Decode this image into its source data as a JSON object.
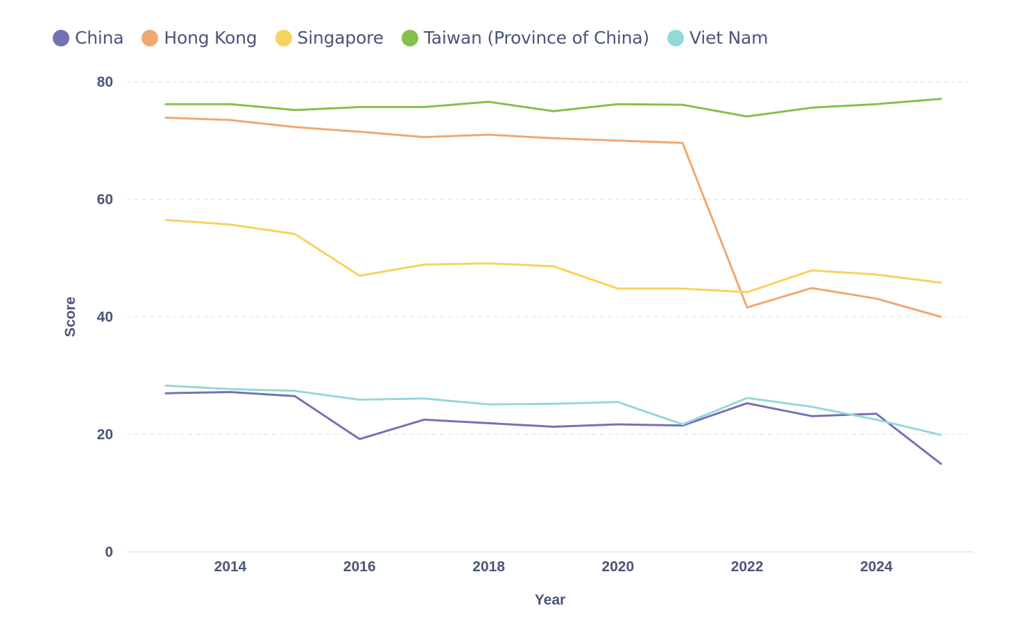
{
  "chart_data": {
    "type": "line",
    "title": "",
    "xlabel": "Year",
    "ylabel": "Score",
    "x": [
      2013,
      2014,
      2015,
      2016,
      2017,
      2018,
      2019,
      2020,
      2021,
      2022,
      2023,
      2024,
      2025
    ],
    "xticks": [
      2014,
      2016,
      2018,
      2020,
      2022,
      2024
    ],
    "yticks": [
      0,
      20,
      40,
      60,
      80
    ],
    "xlim": [
      2012.4,
      2025.5
    ],
    "ylim": [
      0,
      80
    ],
    "grid": true,
    "legend_position": "top-left",
    "series": [
      {
        "name": "China",
        "color": "#7272b3",
        "values": [
          27.0,
          27.2,
          26.5,
          19.2,
          22.5,
          21.9,
          21.3,
          21.7,
          21.5,
          25.3,
          23.1,
          23.5,
          15.0
        ]
      },
      {
        "name": "Hong Kong",
        "color": "#f1a770",
        "values": [
          73.9,
          73.5,
          72.3,
          71.5,
          70.6,
          71.0,
          70.4,
          70.0,
          69.6,
          41.6,
          44.9,
          43.1,
          40.0
        ]
      },
      {
        "name": "Singapore",
        "color": "#f6d35c",
        "values": [
          56.5,
          55.7,
          54.1,
          47.0,
          48.9,
          49.1,
          48.6,
          44.8,
          44.8,
          44.2,
          47.9,
          47.2,
          45.8
        ]
      },
      {
        "name": "Taiwan (Province of China)",
        "color": "#84c04a",
        "values": [
          76.2,
          76.2,
          75.2,
          75.7,
          75.7,
          76.6,
          75.0,
          76.2,
          76.1,
          74.1,
          75.6,
          76.2,
          77.1
        ]
      },
      {
        "name": "Viet Nam",
        "color": "#94d8d8",
        "values": [
          28.3,
          27.7,
          27.4,
          25.9,
          26.1,
          25.1,
          25.2,
          25.5,
          21.7,
          26.2,
          24.7,
          22.5,
          19.9
        ]
      }
    ]
  }
}
